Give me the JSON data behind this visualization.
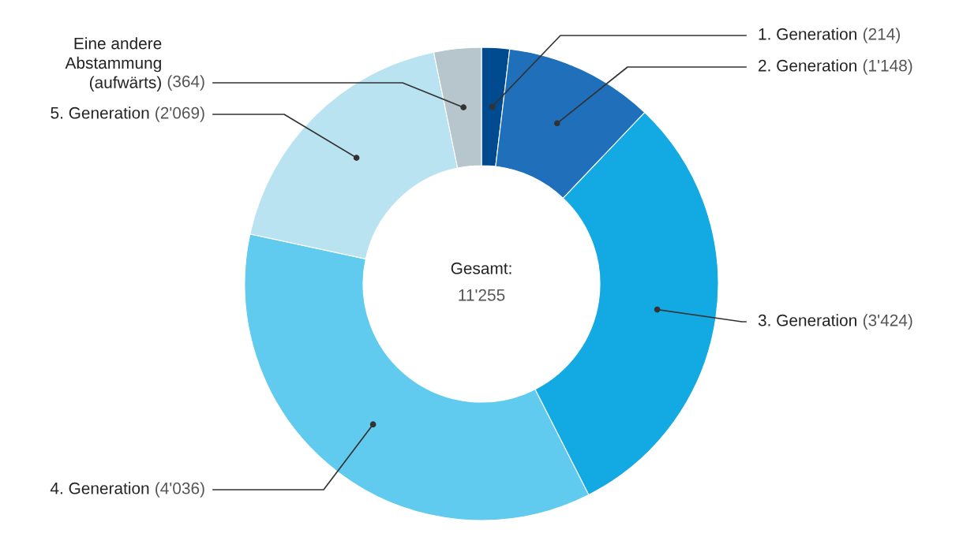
{
  "chart_data": {
    "type": "donut",
    "categories": [
      "1. Generation",
      "2. Generation",
      "3. Generation",
      "4. Generation",
      "5. Generation",
      "Eine andere\nAbstammung\n(aufwärts)"
    ],
    "values": [
      214,
      1148,
      3424,
      4036,
      2069,
      364
    ],
    "value_labels": [
      "(214)",
      "(1'148)",
      "(3'424)",
      "(4'036)",
      "(2'069)",
      "(364)"
    ],
    "colors": [
      "#004a8f",
      "#1f6fba",
      "#13a9e3",
      "#60cbee",
      "#bae3f2",
      "#b7c6cc"
    ],
    "annotations": [
      "Gesamt:",
      "11'255"
    ],
    "legend": false
  }
}
